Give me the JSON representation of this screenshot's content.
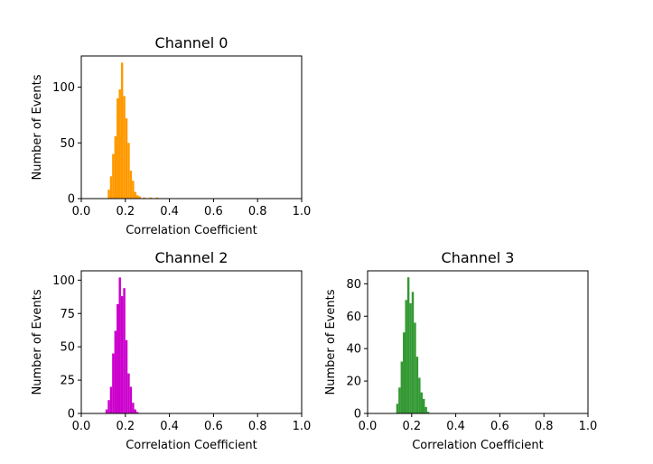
{
  "chart_data": [
    {
      "type": "bar",
      "title": "Channel 0",
      "xlabel": "Correlation Coefficient",
      "ylabel": "Number of Events",
      "xlim": [
        0.0,
        1.0
      ],
      "ylim": [
        0,
        128
      ],
      "xticks": [
        "0.0",
        "0.2",
        "0.4",
        "0.6",
        "0.8",
        "1.0"
      ],
      "yticks": [
        "0",
        "50",
        "100"
      ],
      "color": "#ff9900",
      "bin_width": 0.01,
      "bins": [
        [
          0.12,
          8
        ],
        [
          0.13,
          20
        ],
        [
          0.14,
          40
        ],
        [
          0.15,
          56
        ],
        [
          0.16,
          90
        ],
        [
          0.17,
          98
        ],
        [
          0.18,
          122
        ],
        [
          0.19,
          92
        ],
        [
          0.2,
          72
        ],
        [
          0.21,
          50
        ],
        [
          0.22,
          25
        ],
        [
          0.23,
          16
        ],
        [
          0.24,
          6
        ],
        [
          0.25,
          3
        ],
        [
          0.26,
          2
        ],
        [
          0.28,
          1
        ],
        [
          0.31,
          1
        ],
        [
          0.34,
          1
        ]
      ]
    },
    {
      "type": "bar",
      "title": "Channel 2",
      "xlabel": "Correlation Coefficient",
      "ylabel": "Number of Events",
      "xlim": [
        0.0,
        1.0
      ],
      "ylim": [
        0,
        107
      ],
      "xticks": [
        "0.0",
        "0.2",
        "0.4",
        "0.6",
        "0.8",
        "1.0"
      ],
      "yticks": [
        "0",
        "25",
        "50",
        "75",
        "100"
      ],
      "color": "#cc00cc",
      "bin_width": 0.01,
      "bins": [
        [
          0.11,
          3
        ],
        [
          0.12,
          10
        ],
        [
          0.13,
          20
        ],
        [
          0.14,
          45
        ],
        [
          0.15,
          62
        ],
        [
          0.16,
          82
        ],
        [
          0.17,
          102
        ],
        [
          0.18,
          88
        ],
        [
          0.19,
          94
        ],
        [
          0.2,
          55
        ],
        [
          0.21,
          30
        ],
        [
          0.22,
          20
        ],
        [
          0.23,
          8
        ],
        [
          0.24,
          3
        ],
        [
          0.25,
          1
        ]
      ]
    },
    {
      "type": "bar",
      "title": "Channel 3",
      "xlabel": "Correlation Coefficient",
      "ylabel": "Number of Events",
      "xlim": [
        0.0,
        1.0
      ],
      "ylim": [
        0,
        88
      ],
      "xticks": [
        "0.0",
        "0.2",
        "0.4",
        "0.6",
        "0.8",
        "1.0"
      ],
      "yticks": [
        "0",
        "20",
        "40",
        "60",
        "80"
      ],
      "color": "#339933",
      "bin_width": 0.01,
      "bins": [
        [
          0.13,
          6
        ],
        [
          0.14,
          16
        ],
        [
          0.15,
          32
        ],
        [
          0.16,
          50
        ],
        [
          0.17,
          70
        ],
        [
          0.18,
          84
        ],
        [
          0.19,
          68
        ],
        [
          0.2,
          75
        ],
        [
          0.21,
          56
        ],
        [
          0.22,
          35
        ],
        [
          0.23,
          22
        ],
        [
          0.24,
          13
        ],
        [
          0.25,
          9
        ],
        [
          0.26,
          4
        ],
        [
          0.27,
          1
        ]
      ]
    }
  ]
}
